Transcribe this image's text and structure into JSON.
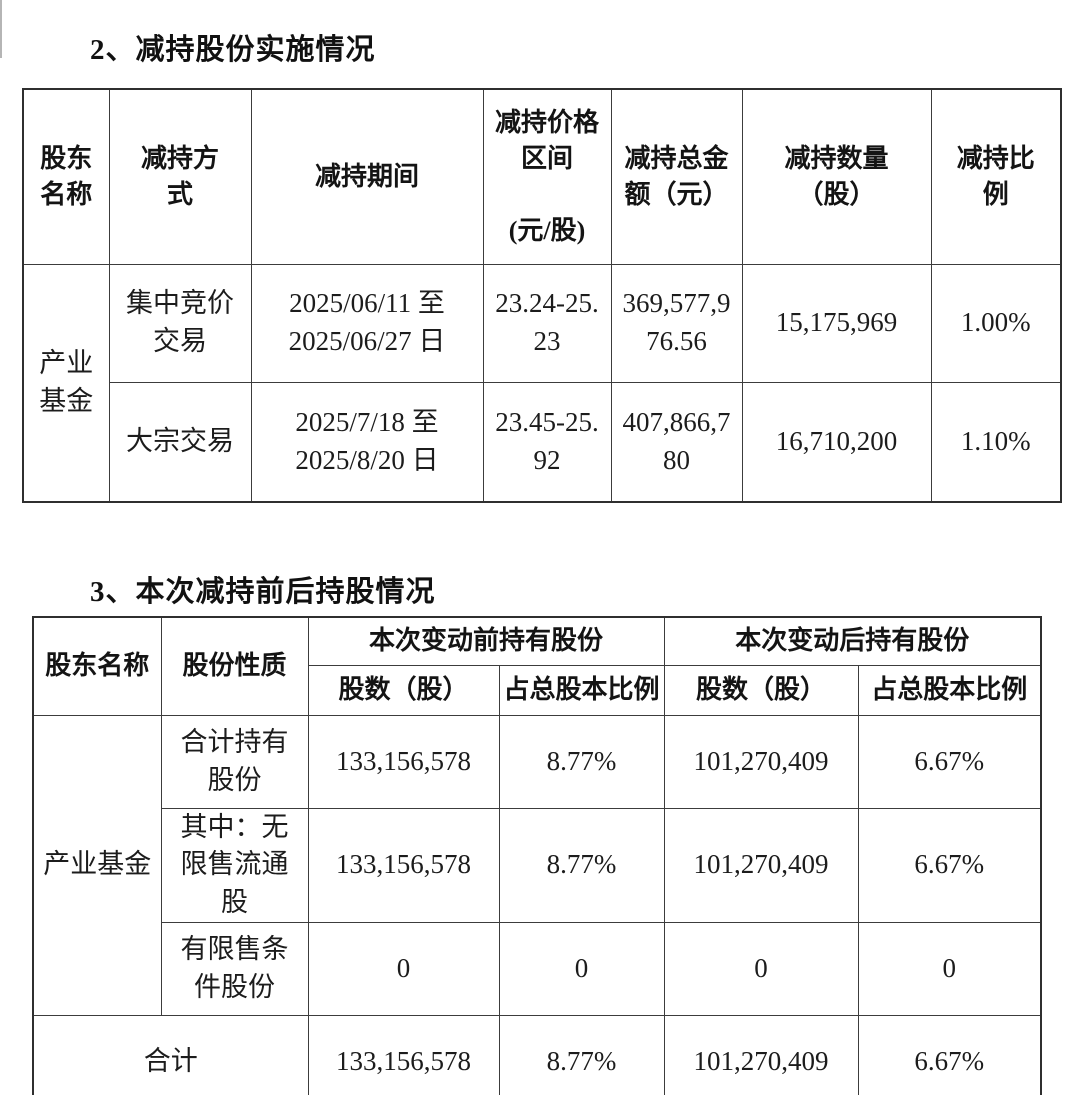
{
  "colors": {
    "background": "#ffffff",
    "text": "#1a1a1a",
    "table_border": "#3c3c3c"
  },
  "section2": {
    "title": "2、减持股份实施情况",
    "table": {
      "headers": {
        "shareholder_name": "股东\n名称",
        "reduction_method": "减持方\n式",
        "reduction_period": "减持期间",
        "price_range": "减持价格\n区间\n\n(元/股)",
        "total_amount": "减持总金\n额（元）",
        "quantity": "减持数量\n（股）",
        "ratio": "减持比\n例"
      },
      "shareholder": "产业基金",
      "rows": [
        {
          "method": "集中竞价交易",
          "period": "2025/06/11 至 2025/06/27 日",
          "price_range": "23.24-25.23",
          "total_amount": "369,577,976.56",
          "quantity": "15,175,969",
          "ratio": "1.00%"
        },
        {
          "method": "大宗交易",
          "period": "2025/7/18 至 2025/8/20 日",
          "price_range": "23.45-25.92",
          "total_amount": "407,866,780",
          "quantity": "16,710,200",
          "ratio": "1.10%"
        }
      ]
    }
  },
  "section3": {
    "title": "3、本次减持前后持股情况",
    "table": {
      "headers": {
        "shareholder_name": "股东名称",
        "share_nature": "股份性质",
        "before_group": "本次变动前持有股份",
        "after_group": "本次变动后持有股份",
        "shares": "股数（股）",
        "pct_of_total": "占总股本比例"
      },
      "shareholder": "产业基金",
      "rows": [
        {
          "nature": "合计持有股份",
          "before_shares": "133,156,578",
          "before_pct": "8.77%",
          "after_shares": "101,270,409",
          "after_pct": "6.67%"
        },
        {
          "nature": "其中：无限售流通股",
          "before_shares": "133,156,578",
          "before_pct": "8.77%",
          "after_shares": "101,270,409",
          "after_pct": "6.67%"
        },
        {
          "nature": "有限售条件股份",
          "before_shares": "0",
          "before_pct": "0",
          "after_shares": "0",
          "after_pct": "0"
        }
      ],
      "total_row": {
        "label": "合计",
        "before_shares": "133,156,578",
        "before_pct": "8.77%",
        "after_shares": "101,270,409",
        "after_pct": "6.67%"
      }
    }
  }
}
